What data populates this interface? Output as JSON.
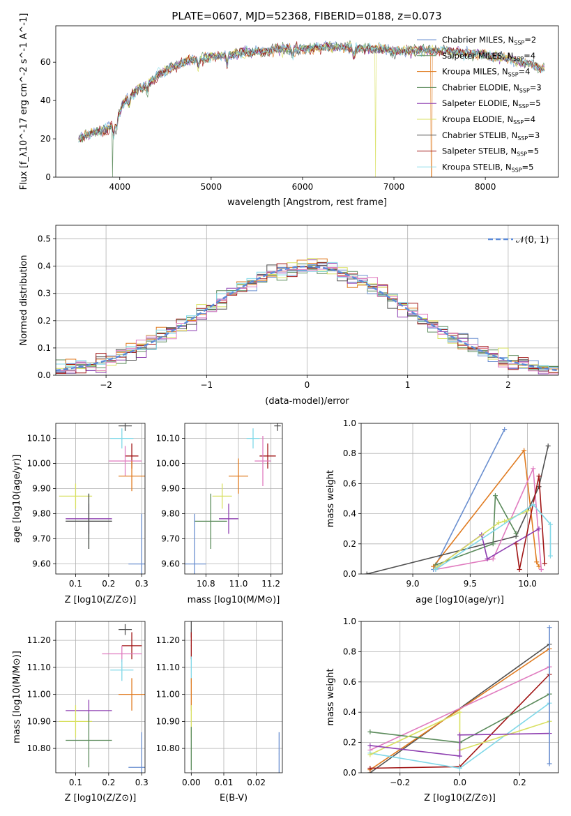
{
  "title": "PLATE=0607, MJD=52368, FIBERID=0188, z=0.073",
  "chart_data": [
    {
      "id": "spectrum",
      "type": "line",
      "xlabel": "wavelength [Angstrom, rest frame]",
      "ylabel": "Flux [f_λ10^-17 erg cm^-2 s^-1 A^-1]",
      "xlim": [
        3300,
        8800
      ],
      "ylim": [
        0,
        79
      ],
      "xticks": [
        4000,
        5000,
        6000,
        7000,
        8000
      ],
      "yticks": [
        0,
        20,
        40,
        60
      ],
      "grid": false,
      "legend_position": "top-right",
      "continuum": {
        "x": [
          3550,
          3700,
          3850,
          3950,
          4050,
          4150,
          4300,
          4450,
          4600,
          4800,
          5000,
          5200,
          5400,
          5600,
          5800,
          6000,
          6200,
          6400,
          6600,
          6800,
          7000,
          7200,
          7400,
          7600,
          7800,
          8000,
          8200,
          8400,
          8600
        ],
        "y": [
          20,
          23,
          25,
          28,
          40,
          44,
          49,
          54,
          58,
          61,
          63,
          64,
          65,
          66,
          67,
          67,
          68,
          68,
          67,
          67,
          66,
          66,
          66,
          66,
          65,
          64,
          62,
          60,
          57
        ]
      },
      "series": [
        {
          "name": "Chabrier MILES, N_SSP=2",
          "color": "#6a8fd0",
          "dropouts": []
        },
        {
          "name": "Salpeter MILES, N_SSP=4",
          "color": "#5e8c5e",
          "dropouts": []
        },
        {
          "name": "Kroupa MILES, N_SSP=4",
          "color": "#e07b20",
          "dropouts": [
            [
              7410,
              0
            ]
          ]
        },
        {
          "name": "Chabrier ELODIE, N_SSP=3",
          "color": "#5a8a5a",
          "dropouts": [
            [
              3920,
              0
            ]
          ]
        },
        {
          "name": "Salpeter ELODIE, N_SSP=5",
          "color": "#8e3fb0",
          "dropouts": []
        },
        {
          "name": "Kroupa ELODIE, N_SSP=4",
          "color": "#d8e060",
          "dropouts": [
            [
              6800,
              0
            ]
          ]
        },
        {
          "name": "Chabrier STELIB, N_SSP=3",
          "color": "#505050",
          "dropouts": []
        },
        {
          "name": "Salpeter STELIB, N_SSP=5",
          "color": "#a01515",
          "dropouts": []
        },
        {
          "name": "Kroupa STELIB, N_SSP=5",
          "color": "#80d8e8",
          "dropouts": []
        }
      ]
    },
    {
      "id": "residuals",
      "type": "line",
      "xlabel": "(data-model)/error",
      "ylabel": "Normed distribution",
      "xlim": [
        -2.5,
        2.5
      ],
      "ylim": [
        0,
        0.55
      ],
      "xticks": [
        -2,
        -1,
        0,
        1,
        2
      ],
      "yticks": [
        0.0,
        0.1,
        0.2,
        0.3,
        0.4,
        0.5
      ],
      "grid": true,
      "legend_position": "top-right",
      "reference": {
        "name": "𝒩(0, 1)",
        "color": "#5b8ad8",
        "mean": 0,
        "sigma": 1
      },
      "bin_width": 0.1,
      "series_colors": [
        "#6a8fd0",
        "#5e8c5e",
        "#e07b20",
        "#5a8a5a",
        "#8e3fb0",
        "#d8e060",
        "#505050",
        "#a01515",
        "#80d8e8",
        "#e07bbf"
      ]
    },
    {
      "id": "age-vs-Z",
      "type": "scatter",
      "xlabel": "Z [log10(Z/Z⊙)]",
      "ylabel": "age [log10(age/yr)]",
      "xlim": [
        0.04,
        0.31
      ],
      "ylim": [
        9.56,
        10.16
      ],
      "xticks": [
        0.1,
        0.2,
        0.3
      ],
      "yticks": [
        9.6,
        9.7,
        9.8,
        9.9,
        10.0,
        10.1
      ],
      "grid": true,
      "points": [
        {
          "color": "#505050",
          "x": 0.25,
          "y": 10.15,
          "xerr": 0.02,
          "yerr": 0.02
        },
        {
          "color": "#80d8e8",
          "x": 0.24,
          "y": 10.1,
          "xerr": 0.035,
          "yerr": 0.04
        },
        {
          "color": "#a01515",
          "x": 0.27,
          "y": 10.03,
          "xerr": 0.02,
          "yerr": 0.05
        },
        {
          "color": "#e07bbf",
          "x": 0.25,
          "y": 10.01,
          "xerr": 0.05,
          "yerr": 0.06
        },
        {
          "color": "#e07b20",
          "x": 0.27,
          "y": 9.95,
          "xerr": 0.04,
          "yerr": 0.06
        },
        {
          "color": "#d8e060",
          "x": 0.1,
          "y": 9.87,
          "xerr": 0.05,
          "yerr": 0.05
        },
        {
          "color": "#8e3fb0",
          "x": 0.14,
          "y": 9.78,
          "xerr": 0.07,
          "yerr": 0.06
        },
        {
          "color": "#5a8a5a",
          "x": 0.14,
          "y": 9.77,
          "xerr": 0.07,
          "yerr": 0.11
        },
        {
          "color": "#505050",
          "x": 0.14,
          "y": 9.77,
          "xerr": 0.07,
          "yerr": 0.11
        },
        {
          "color": "#6a8fd0",
          "x": 0.3,
          "y": 9.6,
          "xerr": 0.04,
          "yerr": 0.2
        }
      ]
    },
    {
      "id": "age-vs-mass",
      "type": "scatter",
      "xlabel": "mass [log10(M/M⊙)]",
      "ylabel": "",
      "xlim": [
        10.67,
        11.27
      ],
      "ylim": [
        9.56,
        10.16
      ],
      "xticks": [
        10.8,
        11.0,
        11.2
      ],
      "yticks": [
        9.6,
        9.7,
        9.8,
        9.9,
        10.0,
        10.1
      ],
      "grid": true,
      "points": [
        {
          "color": "#505050",
          "x": 11.24,
          "y": 10.15,
          "xerr": 0.02,
          "yerr": 0.02
        },
        {
          "color": "#80d8e8",
          "x": 11.09,
          "y": 10.1,
          "xerr": 0.04,
          "yerr": 0.04
        },
        {
          "color": "#a01515",
          "x": 11.18,
          "y": 10.03,
          "xerr": 0.05,
          "yerr": 0.05
        },
        {
          "color": "#e07bbf",
          "x": 11.15,
          "y": 10.01,
          "xerr": 0.05,
          "yerr": 0.1
        },
        {
          "color": "#e07b20",
          "x": 11.0,
          "y": 9.95,
          "xerr": 0.06,
          "yerr": 0.07
        },
        {
          "color": "#d8e060",
          "x": 10.9,
          "y": 9.87,
          "xerr": 0.06,
          "yerr": 0.05
        },
        {
          "color": "#8e3fb0",
          "x": 10.94,
          "y": 9.78,
          "xerr": 0.06,
          "yerr": 0.06
        },
        {
          "color": "#5a8a5a",
          "x": 10.83,
          "y": 9.77,
          "xerr": 0.1,
          "yerr": 0.11
        },
        {
          "color": "#6a8fd0",
          "x": 10.73,
          "y": 9.6,
          "xerr": 0.07,
          "yerr": 0.2
        }
      ]
    },
    {
      "id": "weight-vs-age",
      "type": "line",
      "xlabel": "age [log10(age/yr)]",
      "ylabel": "mass weight",
      "xlim": [
        8.55,
        10.27
      ],
      "ylim": [
        0,
        1
      ],
      "xticks": [
        9.0,
        9.5,
        10.0
      ],
      "yticks": [
        0.0,
        0.2,
        0.4,
        0.6,
        0.8,
        1.0
      ],
      "grid": true,
      "series": [
        {
          "color": "#6a8fd0",
          "x": [
            9.18,
            9.8
          ],
          "y": [
            0.03,
            0.96
          ]
        },
        {
          "color": "#e07b20",
          "x": [
            9.18,
            9.97,
            10.08,
            10.1
          ],
          "y": [
            0.05,
            0.82,
            0.08,
            0.05
          ]
        },
        {
          "color": "#505050",
          "x": [
            8.6,
            9.9,
            10.1,
            10.18
          ],
          "y": [
            0.0,
            0.25,
            0.58,
            0.85
          ]
        },
        {
          "color": "#e07bbf",
          "x": [
            9.2,
            9.7,
            10.05,
            10.12
          ],
          "y": [
            0.03,
            0.1,
            0.7,
            0.03
          ]
        },
        {
          "color": "#5a8a5a",
          "x": [
            9.2,
            9.7,
            9.72,
            9.9
          ],
          "y": [
            0.06,
            0.2,
            0.52,
            0.27
          ]
        },
        {
          "color": "#8e3fb0",
          "x": [
            9.2,
            9.6,
            9.65,
            10.1
          ],
          "y": [
            0.04,
            0.26,
            0.1,
            0.3
          ]
        },
        {
          "color": "#d8e060",
          "x": [
            9.2,
            9.75,
            9.8,
            10.0
          ],
          "y": [
            0.04,
            0.34,
            0.35,
            0.42
          ]
        },
        {
          "color": "#a01515",
          "x": [
            9.9,
            9.93,
            10.1,
            10.15
          ],
          "y": [
            0.2,
            0.03,
            0.65,
            0.07
          ]
        },
        {
          "color": "#80d8e8",
          "x": [
            9.2,
            10.05,
            10.2,
            10.2
          ],
          "y": [
            0.03,
            0.46,
            0.33,
            0.12
          ]
        }
      ]
    },
    {
      "id": "mass-vs-Z",
      "type": "scatter",
      "xlabel": "Z [log10(Z/Z⊙)]",
      "ylabel": "mass [log10(M/M⊙)]",
      "xlim": [
        0.04,
        0.31
      ],
      "ylim": [
        10.71,
        11.27
      ],
      "xticks": [
        0.1,
        0.2,
        0.3
      ],
      "yticks": [
        10.8,
        10.9,
        11.0,
        11.1,
        11.2
      ],
      "grid": true,
      "points": [
        {
          "color": "#505050",
          "x": 0.25,
          "y": 11.24,
          "xerr": 0.02,
          "yerr": 0.02
        },
        {
          "color": "#a01515",
          "x": 0.27,
          "y": 11.18,
          "xerr": 0.03,
          "yerr": 0.05
        },
        {
          "color": "#e07bbf",
          "x": 0.24,
          "y": 11.15,
          "xerr": 0.06,
          "yerr": 0.03
        },
        {
          "color": "#80d8e8",
          "x": 0.24,
          "y": 11.09,
          "xerr": 0.035,
          "yerr": 0.04
        },
        {
          "color": "#e07b20",
          "x": 0.27,
          "y": 11.0,
          "xerr": 0.04,
          "yerr": 0.06
        },
        {
          "color": "#8e3fb0",
          "x": 0.14,
          "y": 10.94,
          "xerr": 0.07,
          "yerr": 0.04
        },
        {
          "color": "#d8e060",
          "x": 0.1,
          "y": 10.9,
          "xerr": 0.05,
          "yerr": 0.06
        },
        {
          "color": "#5a8a5a",
          "x": 0.14,
          "y": 10.83,
          "xerr": 0.07,
          "yerr": 0.1
        },
        {
          "color": "#6a8fd0",
          "x": 0.3,
          "y": 10.73,
          "xerr": 0.04,
          "yerr": 0.13
        }
      ]
    },
    {
      "id": "mass-vs-EBV",
      "type": "scatter",
      "xlabel": "E(B-V)",
      "ylabel": "",
      "xlim": [
        -0.002,
        0.028
      ],
      "ylim": [
        10.71,
        11.27
      ],
      "xticks": [
        0.0,
        0.01,
        0.02
      ],
      "yticks": [
        10.8,
        10.9,
        11.0,
        11.1,
        11.2
      ],
      "grid": true,
      "points": [
        {
          "color": "#505050",
          "x": 0.0,
          "y": 11.24,
          "xerr": 0.0001,
          "yerr": 0.03
        },
        {
          "color": "#a01515",
          "x": 0.0,
          "y": 11.18,
          "xerr": 0.0001,
          "yerr": 0.05
        },
        {
          "color": "#80d8e8",
          "x": 0.0,
          "y": 11.09,
          "xerr": 0.0001,
          "yerr": 0.05
        },
        {
          "color": "#e07b20",
          "x": 0.0,
          "y": 11.0,
          "xerr": 0.0001,
          "yerr": 0.06
        },
        {
          "color": "#d8e060",
          "x": 0.0,
          "y": 10.9,
          "xerr": 0.0001,
          "yerr": 0.06
        },
        {
          "color": "#5a8a5a",
          "x": 0.0,
          "y": 10.8,
          "xerr": 0.0001,
          "yerr": 0.08
        },
        {
          "color": "#6a8fd0",
          "x": 0.027,
          "y": 10.78,
          "xerr": 0.0001,
          "yerr": 0.08
        }
      ]
    },
    {
      "id": "weight-vs-Z",
      "type": "line",
      "xlabel": "Z [log10(Z/Z⊙)]",
      "ylabel": "mass weight",
      "xlim": [
        -0.33,
        0.33
      ],
      "ylim": [
        0,
        1
      ],
      "xticks": [
        -0.2,
        0.0,
        0.2
      ],
      "yticks": [
        0.0,
        0.2,
        0.4,
        0.6,
        0.8,
        1.0
      ],
      "grid": true,
      "series": [
        {
          "color": "#505050",
          "x": [
            -0.3,
            0.3
          ],
          "y": [
            0.0,
            0.85
          ]
        },
        {
          "color": "#e07b20",
          "x": [
            -0.3,
            0.3
          ],
          "y": [
            0.02,
            0.82
          ]
        },
        {
          "color": "#e07bbf",
          "x": [
            -0.3,
            0.3
          ],
          "y": [
            0.15,
            0.7
          ]
        },
        {
          "color": "#a01515",
          "x": [
            -0.3,
            0.0,
            0.3
          ],
          "y": [
            0.03,
            0.04,
            0.65
          ]
        },
        {
          "color": "#5a8a5a",
          "x": [
            -0.3,
            0.0,
            0.3
          ],
          "y": [
            0.27,
            0.2,
            0.52
          ]
        },
        {
          "color": "#80d8e8",
          "x": [
            -0.3,
            0.0,
            0.3
          ],
          "y": [
            0.13,
            0.03,
            0.46
          ]
        },
        {
          "color": "#d8e060",
          "x": [
            -0.3,
            0.0,
            0.0,
            0.3
          ],
          "y": [
            0.12,
            0.4,
            0.15,
            0.34
          ]
        },
        {
          "color": "#8e3fb0",
          "x": [
            -0.3,
            0.0,
            0.0,
            0.3
          ],
          "y": [
            0.18,
            0.11,
            0.25,
            0.26
          ]
        },
        {
          "color": "#6a8fd0",
          "x": [
            0.3,
            0.3
          ],
          "y": [
            0.06,
            0.96
          ]
        }
      ]
    }
  ]
}
